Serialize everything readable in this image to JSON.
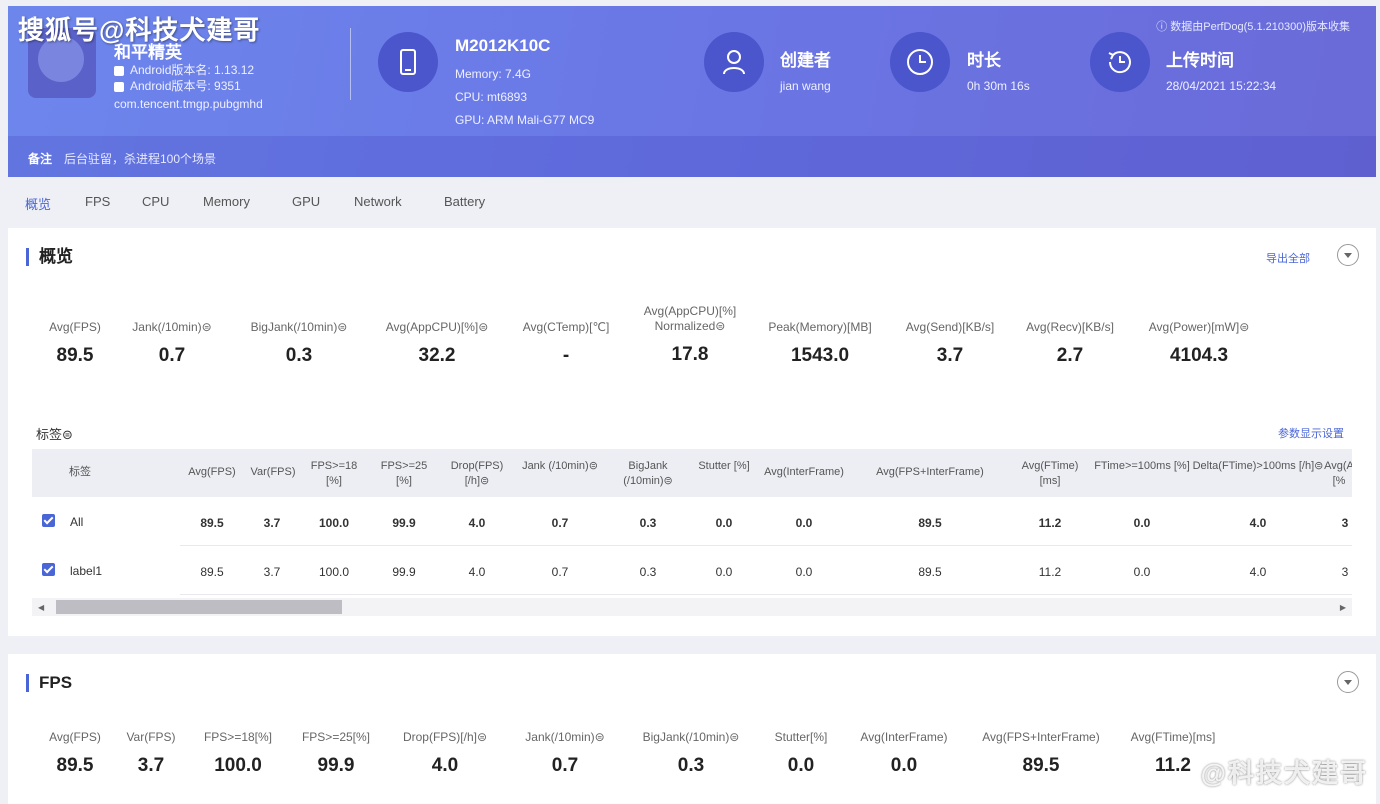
{
  "watermark_top": "搜狐号@科技犬建哥",
  "watermark_bottom": "@科技犬建哥",
  "header": {
    "app_name": "和平精英",
    "android_version_name": "Android版本名: 1.13.12",
    "android_version_code": "Android版本号: 9351",
    "package": "com.tencent.tmgp.pubgmhd",
    "device_name": "M2012K10C",
    "device_memory": "Memory: 7.4G",
    "device_cpu": "CPU: mt6893",
    "device_gpu": "GPU: ARM Mali-G77 MC9",
    "creator_title": "创建者",
    "creator_value": "jian wang",
    "duration_title": "时长",
    "duration_value": "0h 30m 16s",
    "upload_title": "上传时间",
    "upload_value": "28/04/2021 15:22:34",
    "perfdog_tip": "数据由PerfDog(5.1.210300)版本收集",
    "note_label": "备注",
    "note_text": "后台驻留，杀进程100个场景"
  },
  "tabs": [
    "概览",
    "FPS",
    "CPU",
    "Memory",
    "GPU",
    "Network",
    "Battery"
  ],
  "overview": {
    "title": "概览",
    "export_all": "导出全部",
    "metrics": [
      {
        "label": "Avg(FPS)",
        "value": "89.5"
      },
      {
        "label": "Jank(/10min)⊜",
        "value": "0.7"
      },
      {
        "label": "BigJank(/10min)⊜",
        "value": "0.3"
      },
      {
        "label": "Avg(AppCPU)[%]⊜",
        "value": "32.2"
      },
      {
        "label": "Avg(CTemp)[℃]",
        "value": "-"
      },
      {
        "label": "Avg(AppCPU)[%] Normalized⊜",
        "value": "17.8"
      },
      {
        "label": "Peak(Memory)[MB]",
        "value": "1543.0"
      },
      {
        "label": "Avg(Send)[KB/s]",
        "value": "3.7"
      },
      {
        "label": "Avg(Recv)[KB/s]",
        "value": "2.7"
      },
      {
        "label": "Avg(Power)[mW]⊜",
        "value": "4104.3"
      }
    ],
    "labels_title": "标签⊜",
    "param_settings": "参数显示设置",
    "table": {
      "headers": [
        "标签",
        "Avg(FPS)",
        "Var(FPS)",
        "FPS>=18 [%]",
        "FPS>=25 [%]",
        "Drop(FPS) [/h]⊜",
        "Jank (/10min)⊜",
        "BigJank (/10min)⊜",
        "Stutter [%]",
        "Avg(InterFrame)",
        "Avg(FPS+InterFrame)",
        "Avg(FTime) [ms]",
        "FTime>=100ms [%]",
        "Delta(FTime)>100ms [/h]⊜",
        "Avg(A [%"
      ],
      "rows": [
        {
          "label": "All",
          "cells": [
            "89.5",
            "3.7",
            "100.0",
            "99.9",
            "4.0",
            "0.7",
            "0.3",
            "0.0",
            "0.0",
            "89.5",
            "11.2",
            "0.0",
            "4.0",
            "3"
          ]
        },
        {
          "label": "label1",
          "cells": [
            "89.5",
            "3.7",
            "100.0",
            "99.9",
            "4.0",
            "0.7",
            "0.3",
            "0.0",
            "0.0",
            "89.5",
            "11.2",
            "0.0",
            "4.0",
            "3"
          ]
        }
      ]
    }
  },
  "fps_section": {
    "title": "FPS",
    "metrics": [
      {
        "label": "Avg(FPS)",
        "value": "89.5"
      },
      {
        "label": "Var(FPS)",
        "value": "3.7"
      },
      {
        "label": "FPS>=18[%]",
        "value": "100.0"
      },
      {
        "label": "FPS>=25[%]",
        "value": "99.9"
      },
      {
        "label": "Drop(FPS)[/h]⊜",
        "value": "4.0"
      },
      {
        "label": "Jank(/10min)⊜",
        "value": "0.7"
      },
      {
        "label": "BigJank(/10min)⊜",
        "value": "0.3"
      },
      {
        "label": "Stutter[%]",
        "value": "0.0"
      },
      {
        "label": "Avg(InterFrame)",
        "value": "0.0"
      },
      {
        "label": "Avg(FPS+InterFrame)",
        "value": "89.5"
      },
      {
        "label": "Avg(FTime)[ms]",
        "value": "11.2"
      }
    ]
  }
}
